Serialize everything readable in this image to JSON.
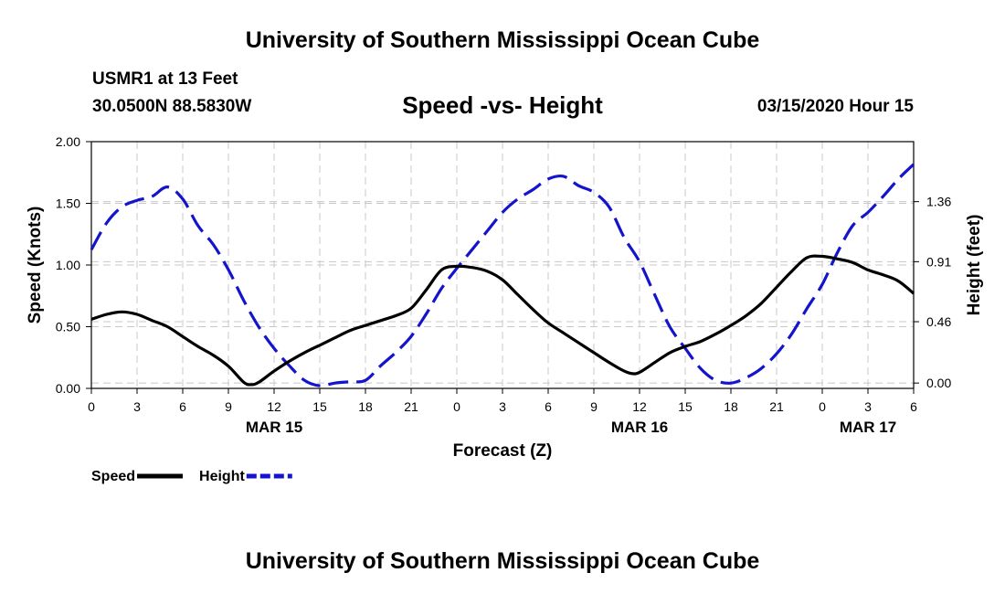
{
  "header": {
    "title": "University of Southern Mississippi Ocean Cube",
    "station": "USMR1 at 13 Feet",
    "coords": "30.0500N 88.5830W",
    "subtitle": "Speed -vs- Height",
    "datetime": "03/15/2020 Hour 15"
  },
  "footer": {
    "title": "University of Southern Mississippi Ocean Cube"
  },
  "chart_data": {
    "type": "line",
    "title": "Speed -vs- Height",
    "xlabel": "Forecast (Z)",
    "ylabel": "Speed (Knots)",
    "y2label": "Height (feet)",
    "x_hours_range": [
      0,
      54
    ],
    "x_tick_labels": [
      "0",
      "3",
      "6",
      "9",
      "12",
      "15",
      "18",
      "21",
      "0",
      "3",
      "6",
      "9",
      "12",
      "15",
      "18",
      "21",
      "0",
      "3",
      "6"
    ],
    "date_labels": [
      {
        "hour": 12,
        "label": "MAR 15"
      },
      {
        "hour": 36,
        "label": "MAR 16"
      },
      {
        "hour": 51,
        "label": "MAR 17"
      }
    ],
    "ylim": [
      0,
      2.0
    ],
    "y_ticks": [
      "0.00",
      "0.50",
      "1.00",
      "1.50",
      "2.00"
    ],
    "y2_ticks": [
      {
        "value": 0.0,
        "label": "0.00"
      },
      {
        "value": 0.46,
        "label": "0.46"
      },
      {
        "value": 0.91,
        "label": "0.91"
      },
      {
        "value": 1.36,
        "label": "1.36"
      }
    ],
    "y2lim": [
      -0.04,
      1.81
    ],
    "grid": true,
    "legend_position": "bottom-left",
    "series": [
      {
        "name": "Speed",
        "axis": "left",
        "color": "#000000",
        "style": "solid",
        "x": [
          0,
          1,
          2,
          3,
          4,
          5,
          6,
          7,
          8,
          9,
          10,
          10.5,
          11,
          12,
          13,
          14,
          15,
          16,
          17,
          18,
          19,
          20,
          21,
          22,
          23,
          24,
          25,
          26,
          27,
          28,
          29,
          30,
          31,
          32,
          33,
          34,
          35,
          35.5,
          36,
          37,
          38,
          39,
          40,
          41,
          42,
          43,
          44,
          45,
          46,
          47,
          48,
          49,
          50,
          51,
          52,
          53,
          54
        ],
        "values": [
          0.56,
          0.6,
          0.62,
          0.6,
          0.55,
          0.5,
          0.42,
          0.34,
          0.27,
          0.18,
          0.05,
          0.03,
          0.05,
          0.14,
          0.22,
          0.29,
          0.35,
          0.41,
          0.47,
          0.51,
          0.55,
          0.59,
          0.65,
          0.8,
          0.96,
          0.99,
          0.98,
          0.95,
          0.88,
          0.76,
          0.64,
          0.53,
          0.45,
          0.37,
          0.29,
          0.21,
          0.14,
          0.12,
          0.13,
          0.21,
          0.29,
          0.34,
          0.38,
          0.44,
          0.51,
          0.59,
          0.69,
          0.82,
          0.95,
          1.06,
          1.07,
          1.05,
          1.02,
          0.96,
          0.92,
          0.87,
          0.77
        ]
      },
      {
        "name": "Height",
        "axis": "right",
        "color": "#1414cc",
        "style": "dashed",
        "x": [
          0,
          1,
          2,
          3,
          4,
          5,
          6,
          7,
          8,
          9,
          10,
          11,
          12,
          13,
          14,
          15,
          16,
          17,
          18,
          19,
          20,
          21,
          22,
          23,
          24,
          25,
          26,
          27,
          28,
          29,
          30,
          31,
          32,
          33,
          34,
          35,
          36,
          37,
          38,
          39,
          40,
          41,
          42,
          43,
          44,
          45,
          46,
          47,
          48,
          49,
          50,
          51,
          52,
          53,
          54
        ],
        "values": [
          1.0,
          1.2,
          1.32,
          1.37,
          1.4,
          1.47,
          1.38,
          1.18,
          1.04,
          0.85,
          0.62,
          0.42,
          0.26,
          0.13,
          0.02,
          -0.02,
          0.0,
          0.01,
          0.02,
          0.13,
          0.23,
          0.35,
          0.52,
          0.71,
          0.86,
          1.0,
          1.14,
          1.28,
          1.38,
          1.45,
          1.53,
          1.55,
          1.48,
          1.43,
          1.32,
          1.09,
          0.91,
          0.66,
          0.42,
          0.26,
          0.11,
          0.02,
          0.0,
          0.04,
          0.11,
          0.22,
          0.37,
          0.56,
          0.74,
          0.98,
          1.18,
          1.28,
          1.4,
          1.53,
          1.64
        ]
      }
    ]
  }
}
